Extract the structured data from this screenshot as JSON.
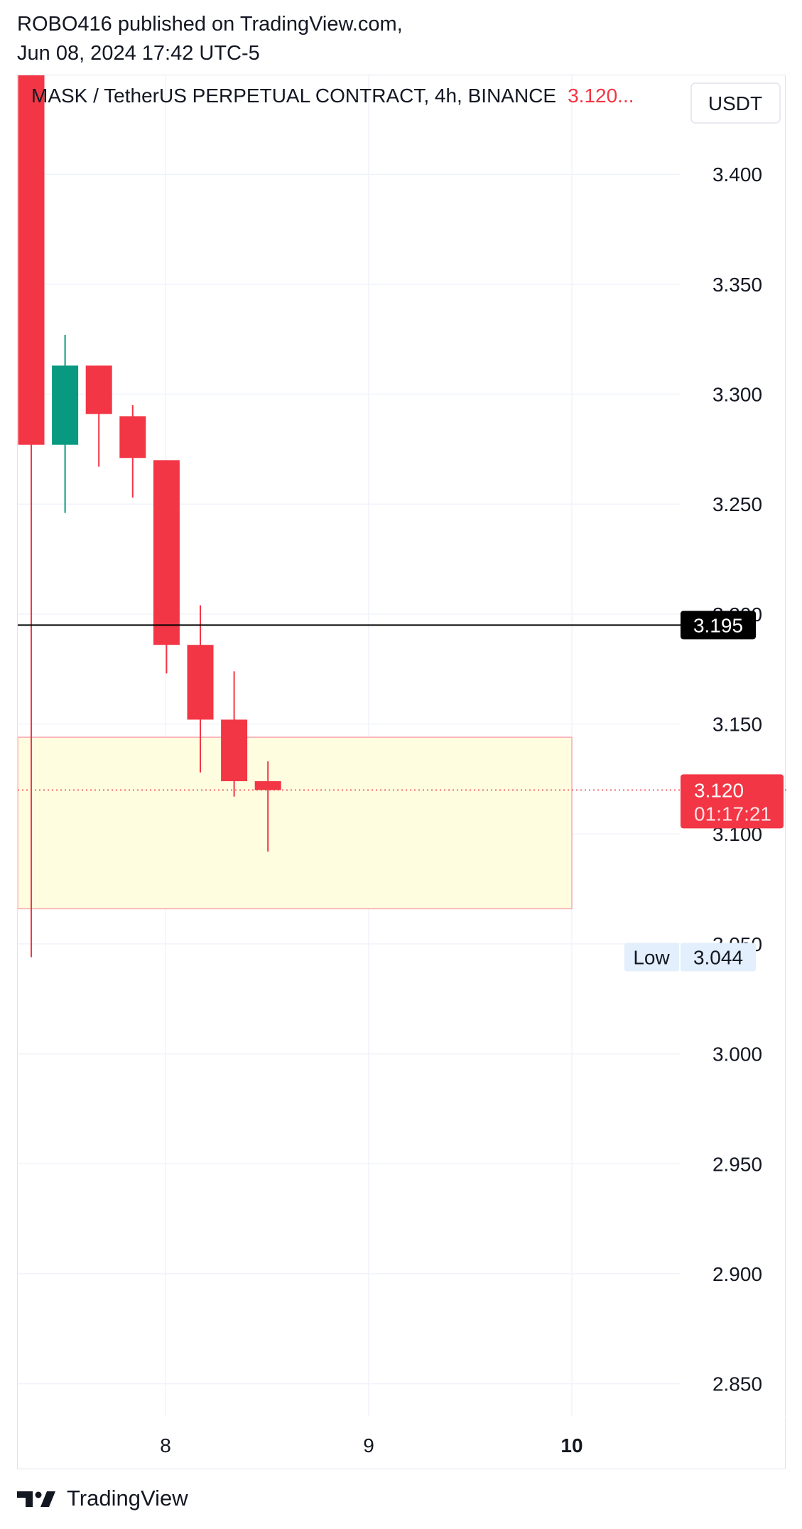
{
  "header": {
    "published_by": "ROBO416 published on TradingView.com,",
    "datetime": "Jun 08, 2024 17:42 UTC-5"
  },
  "chart_data": {
    "type": "candlestick",
    "title": "MASK / TetherUS PERPETUAL CONTRACT, 4h, BINANCE",
    "last_price_title": "3.120...",
    "currency": "USDT",
    "y_ticks": [
      "3.400",
      "3.350",
      "3.300",
      "3.250",
      "3.200",
      "3.150",
      "3.100",
      "3.050",
      "3.000",
      "2.950",
      "2.900",
      "2.850"
    ],
    "ylim": [
      2.835,
      3.445
    ],
    "x_ticks": [
      "8",
      "9",
      "10"
    ],
    "candles": [
      {
        "open": 3.48,
        "high": 3.52,
        "low": 3.044,
        "close": 3.277
      },
      {
        "open": 3.277,
        "high": 3.327,
        "low": 3.246,
        "close": 3.313
      },
      {
        "open": 3.313,
        "high": 3.313,
        "low": 3.267,
        "close": 3.291
      },
      {
        "open": 3.29,
        "high": 3.295,
        "low": 3.253,
        "close": 3.271
      },
      {
        "open": 3.27,
        "high": 3.27,
        "low": 3.173,
        "close": 3.186
      },
      {
        "open": 3.186,
        "high": 3.204,
        "low": 3.128,
        "close": 3.152
      },
      {
        "open": 3.152,
        "high": 3.174,
        "low": 3.117,
        "close": 3.124
      },
      {
        "open": 3.124,
        "high": 3.133,
        "low": 3.092,
        "close": 3.12
      }
    ],
    "horizontal_line": {
      "value": 3.195,
      "label": "3.195",
      "color": "#000000"
    },
    "current_price": {
      "value": 3.12,
      "label": "3.120",
      "countdown": "01:17:21",
      "color": "#f23645"
    },
    "low_marker": {
      "text": "Low",
      "value": 3.044,
      "label": "3.044"
    },
    "zone": {
      "top": 3.144,
      "bottom": 3.066,
      "fill": "#fffde0",
      "border": "#f7a9b0"
    },
    "colors": {
      "up": "#089981",
      "down": "#f23645",
      "grid": "#f0f3fa",
      "axis_text": "#131722"
    }
  },
  "footer": {
    "brand": "TradingView",
    "logo_icon": "tradingview-logo-icon"
  }
}
